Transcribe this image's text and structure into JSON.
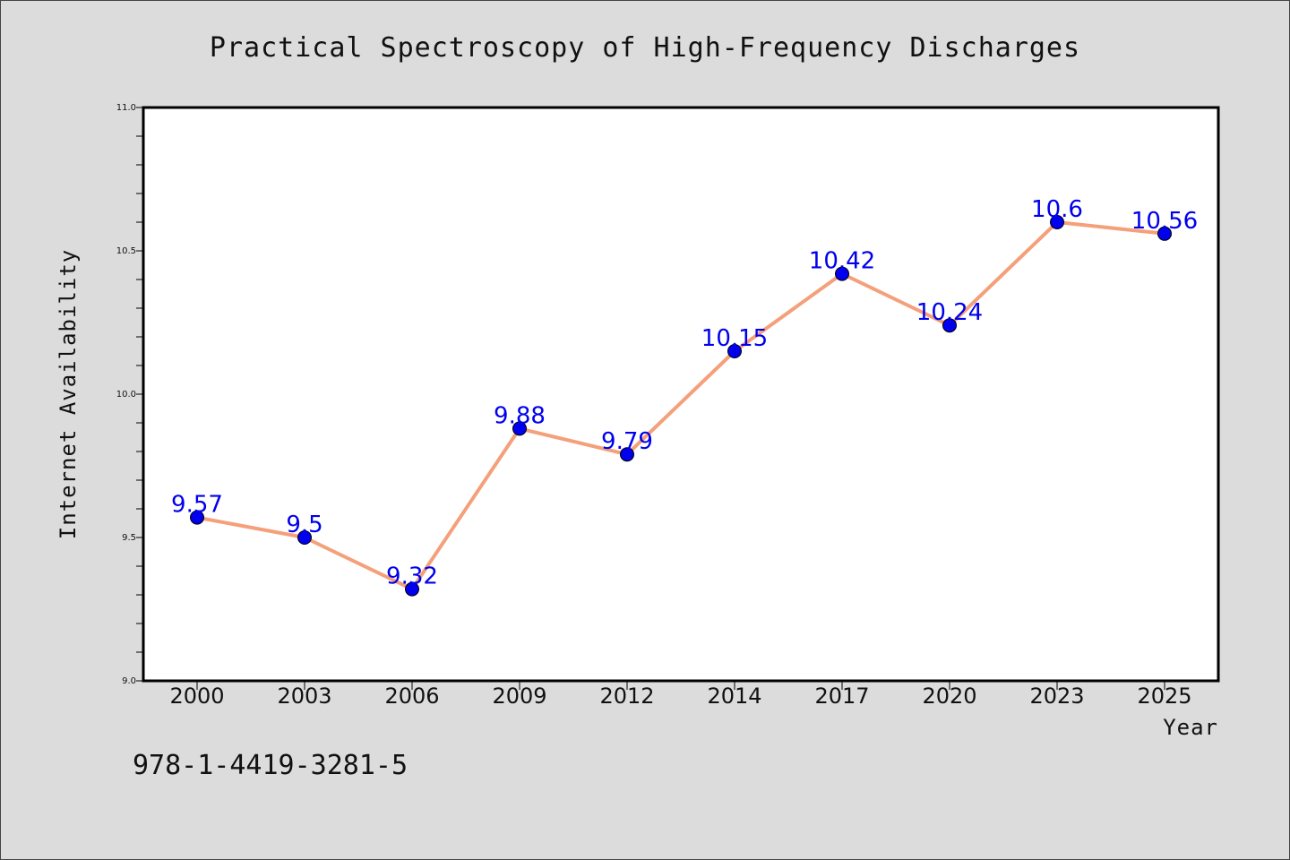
{
  "chart_data": {
    "type": "line",
    "title": "Practical Spectroscopy of High-Frequency Discharges",
    "xlabel": "Year",
    "ylabel": "Internet Availability",
    "categories": [
      "2000",
      "2003",
      "2006",
      "2009",
      "2012",
      "2014",
      "2017",
      "2020",
      "2023",
      "2025"
    ],
    "series": [
      {
        "values": [
          9.57,
          9.5,
          9.32,
          9.88,
          9.79,
          10.15,
          10.42,
          10.24,
          10.6,
          10.56
        ],
        "data_labels": [
          "9.57",
          "9.5",
          "9.32",
          "9.88",
          "9.79",
          "10.15",
          "10.42",
          "10.24",
          "10.6",
          "10.56"
        ],
        "line_color": "#f4a07a",
        "marker_color": "#0000ee"
      }
    ],
    "ylim": [
      9.0,
      11.0
    ],
    "yticks": [
      "9.0",
      "9.5",
      "10.0",
      "10.5",
      "11.0"
    ],
    "grid": false,
    "label_color": "#0000ee"
  },
  "annotation": "978-1-4419-3281-5",
  "colors": {
    "background": "#dcdcdc",
    "plot_background": "#ffffff"
  }
}
